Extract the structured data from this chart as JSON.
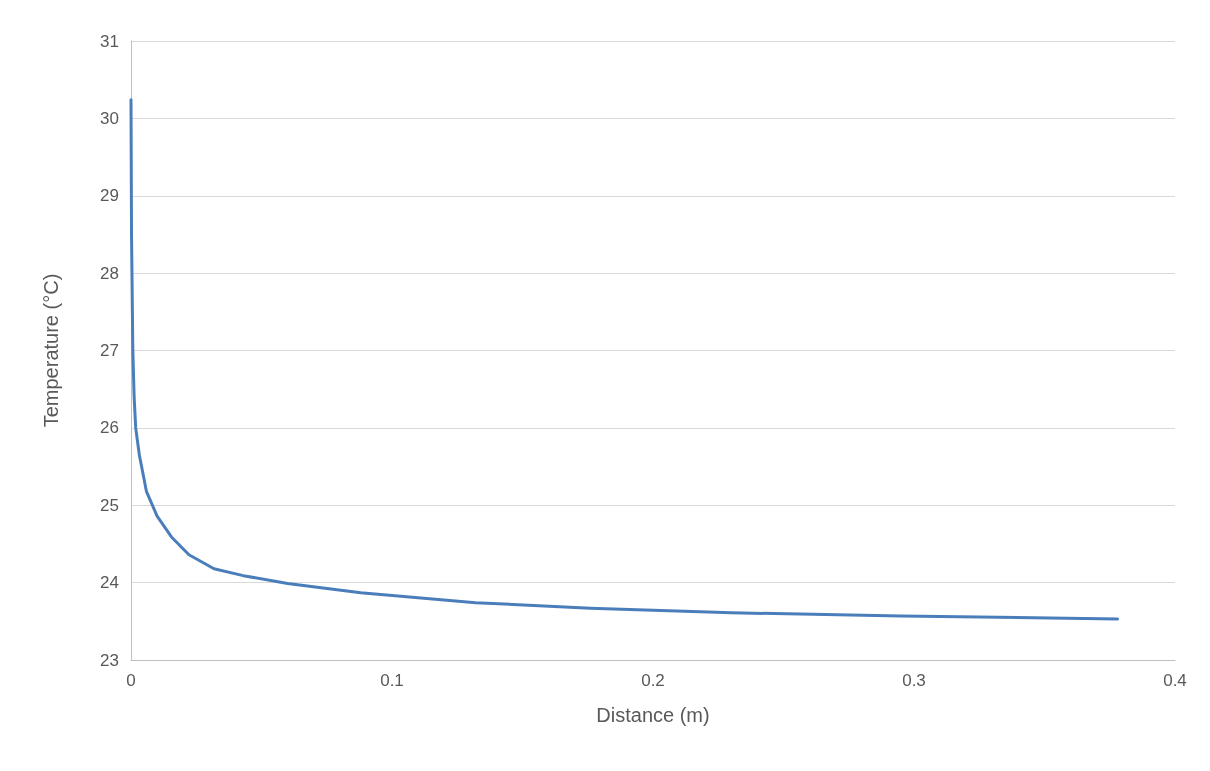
{
  "chart_data": {
    "type": "line",
    "xlabel": "Distance (m)",
    "ylabel": "Temperature (°C)",
    "series": [
      {
        "color": "#4a7ebb",
        "x": [
          0,
          0.0002,
          0.0007,
          0.0012,
          0.0018,
          0.0032,
          0.0059,
          0.01,
          0.0155,
          0.0222,
          0.0318,
          0.043,
          0.06,
          0.088,
          0.132,
          0.176,
          0.23,
          0.295,
          0.378
        ],
        "values": [
          30.24,
          28.5,
          27.0,
          26.4,
          26.0,
          25.65,
          25.18,
          24.86,
          24.59,
          24.36,
          24.18,
          24.09,
          23.99,
          23.87,
          23.74,
          23.67,
          23.61,
          23.57,
          23.53
        ]
      }
    ],
    "xlim": [
      0,
      0.4
    ],
    "xticks": [
      0,
      0.1,
      0.2,
      0.3,
      0.4
    ],
    "ylim": [
      23,
      31
    ],
    "yticks": [
      23,
      24,
      25,
      26,
      27,
      28,
      29,
      30,
      31
    ],
    "grid": "y",
    "marker": "none",
    "line_style": "solid"
  }
}
